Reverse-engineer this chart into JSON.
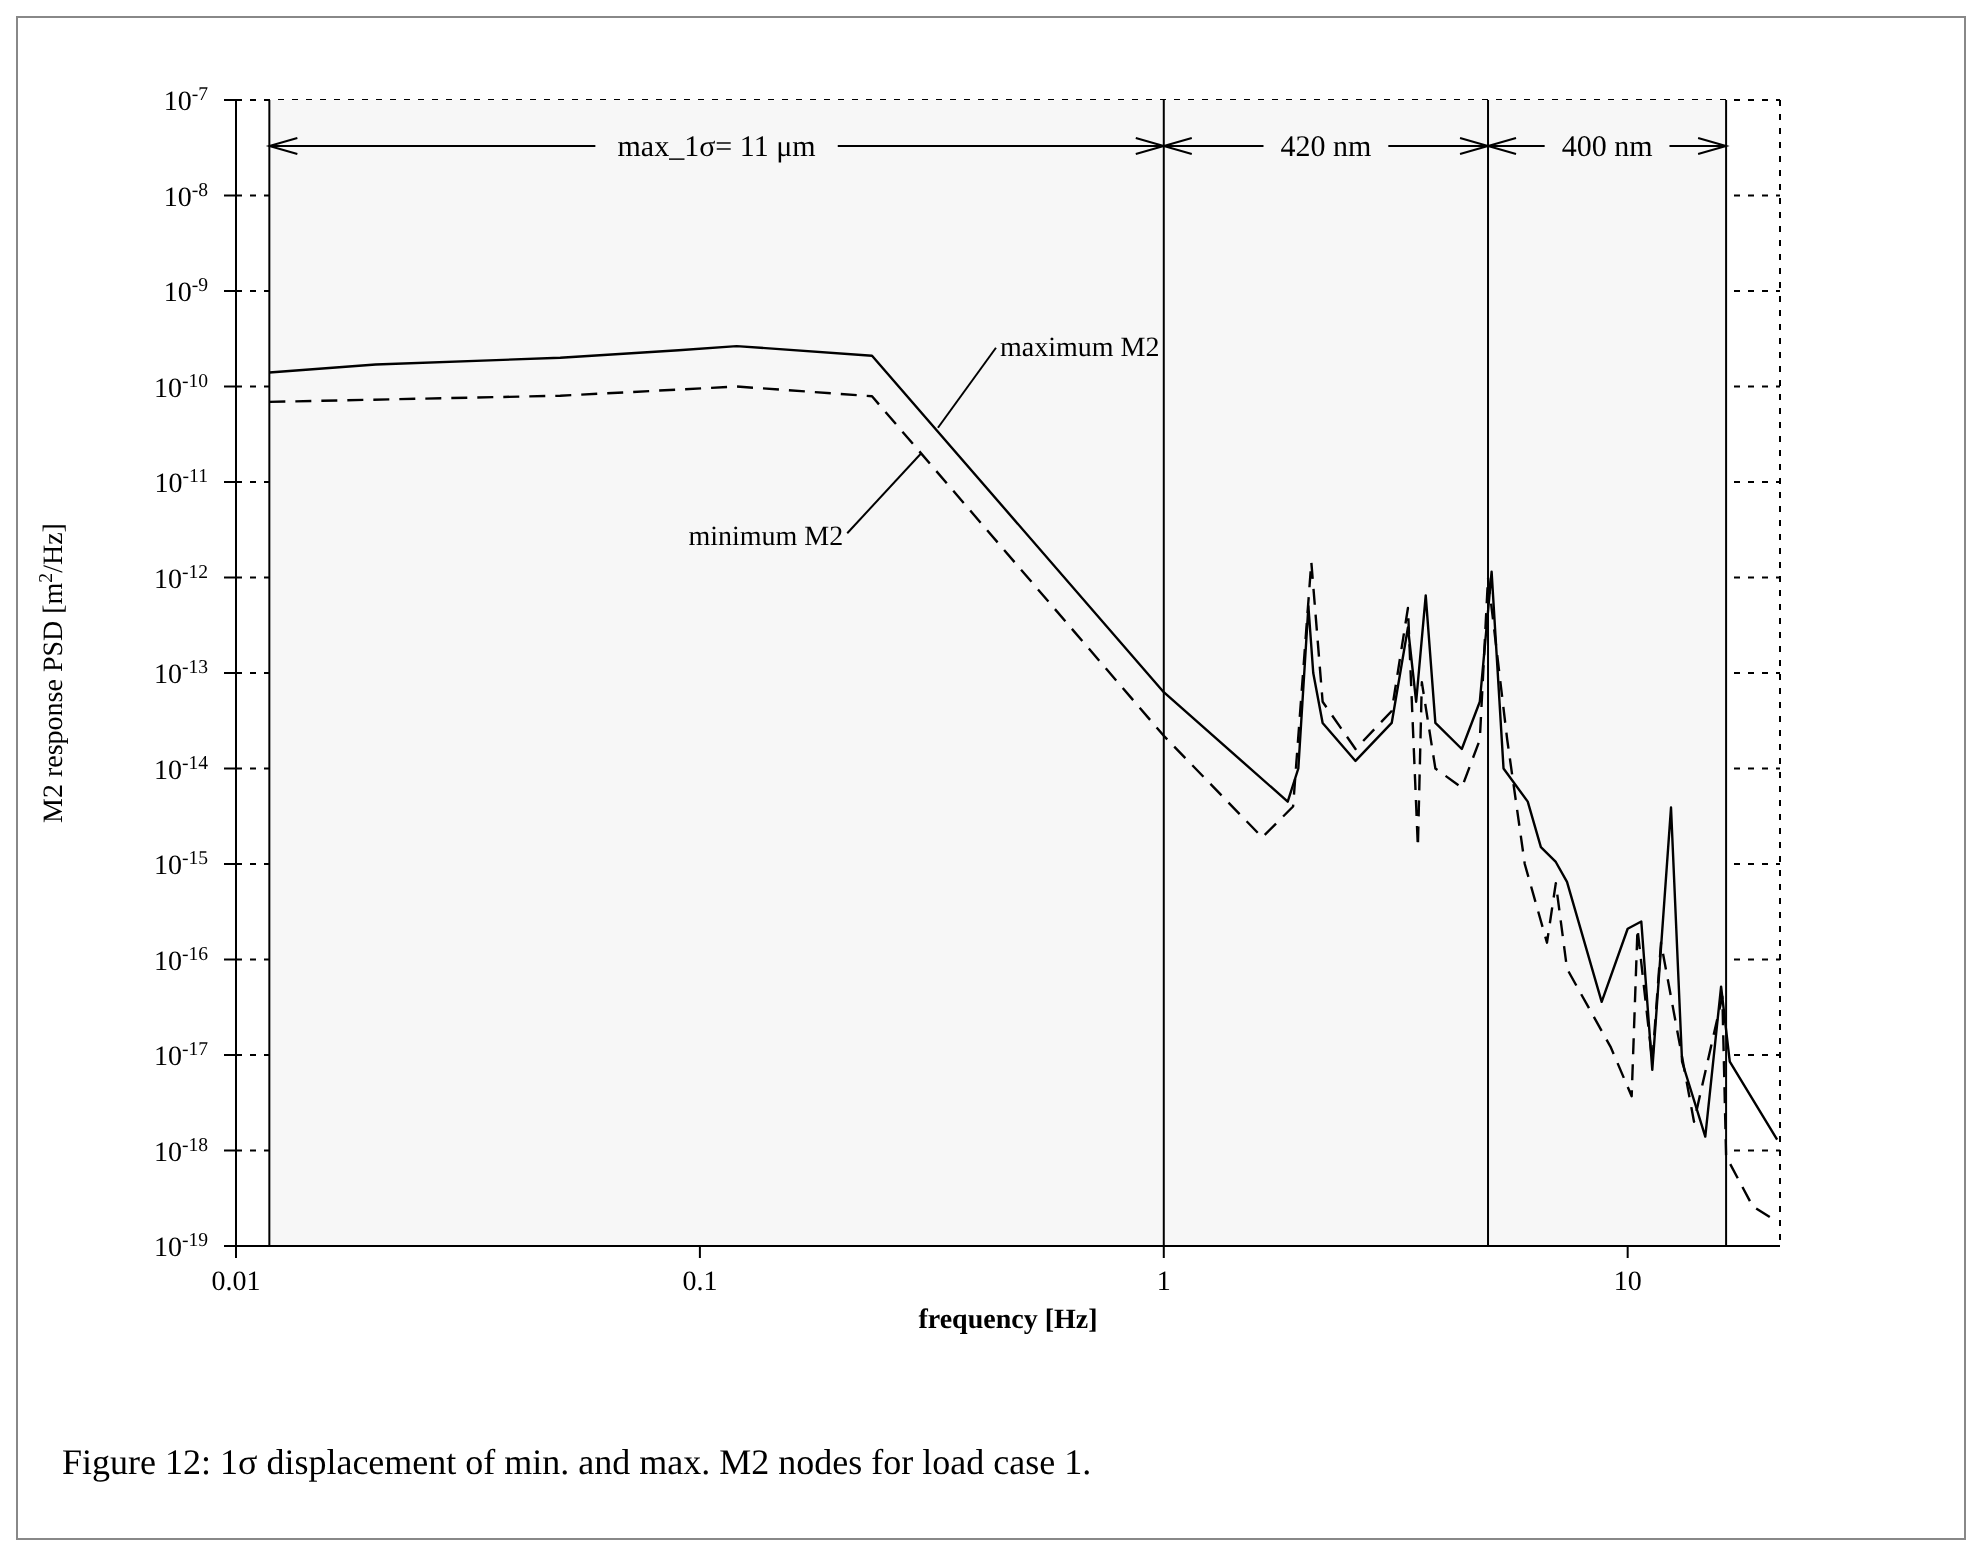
{
  "chart_data": {
    "type": "line",
    "xlabel": "frequency [Hz]",
    "ylabel": "M2 response PSD [m$^{2}$/Hz]",
    "log": "xy",
    "grid": true,
    "xlim": [
      0.01,
      21.3
    ],
    "xticks": [
      0.01,
      0.1,
      1,
      10
    ],
    "ylim": [
      1e-19,
      1e-07
    ],
    "yticks": [
      {
        "value": 1e-07,
        "label": "10$^{-7}$"
      },
      {
        "value": 1e-08,
        "label": "10$^{-8}$"
      },
      {
        "value": 1e-09,
        "label": "10$^{-9}$"
      },
      {
        "value": 1e-10,
        "label": "10$^{-10}$"
      },
      {
        "value": 1e-11,
        "label": "10$^{-11}$"
      },
      {
        "value": 1e-12,
        "label": "10$^{-12}$"
      },
      {
        "value": 1e-13,
        "label": "10$^{-13}$"
      },
      {
        "value": 1e-14,
        "label": "10$^{-14}$"
      },
      {
        "value": 1e-15,
        "label": "10$^{-15}$"
      },
      {
        "value": 1e-16,
        "label": "10$^{-16}$"
      },
      {
        "value": 1e-17,
        "label": "10$^{-17}$"
      },
      {
        "value": 1e-18,
        "label": "10$^{-18}$"
      },
      {
        "value": 1e-19,
        "label": "10$^{-19}$"
      }
    ],
    "series": [
      {
        "color": "#000000",
        "line_style": "solid",
        "x": [
          0.0118,
          0.02,
          0.05,
          0.09,
          0.12,
          0.235,
          1,
          1.85,
          1.95,
          2.05,
          2.1,
          2.2,
          2.59,
          3.1,
          3.36,
          3.5,
          3.67,
          3.85,
          4.39,
          4.8,
          5.09,
          5.4,
          6.09,
          6.5,
          7.0,
          7.4,
          8.79,
          10,
          10.7,
          11.3,
          12.4,
          13.1,
          14.7,
          15.9,
          16.6,
          21
        ],
        "values": [
          1.4e-10,
          1.7e-10,
          2e-10,
          2.4e-10,
          2.65e-10,
          2.1e-10,
          6.3e-14,
          4.5e-15,
          1e-14,
          5e-13,
          1e-13,
          3e-14,
          1.2e-14,
          3e-14,
          3e-13,
          5e-14,
          6.5e-13,
          3e-14,
          1.6e-14,
          5e-14,
          1.15e-12,
          1e-14,
          4.5e-15,
          1.5e-15,
          1.05e-15,
          6.5e-16,
          3.6e-17,
          2.1e-16,
          2.5e-16,
          7e-18,
          3.9e-15,
          8.5e-18,
          1.4e-18,
          5.2e-17,
          8.5e-18,
          1.3e-18
        ]
      },
      {
        "color": "#000000",
        "line_style": "dashed",
        "x": [
          0.0118,
          0.05,
          0.12,
          0.235,
          1,
          1.63,
          1.9,
          2.08,
          2.2,
          2.59,
          3.1,
          3.36,
          3.53,
          3.6,
          3.85,
          4.39,
          4.8,
          5.0,
          5.5,
          6.0,
          6.7,
          7.0,
          7.4,
          9.2,
          10.2,
          10.5,
          11.3,
          11.8,
          13.9,
          16.0,
          16.3,
          18.6,
          21
        ],
        "values": [
          6.9e-11,
          8e-11,
          1e-10,
          7.9e-11,
          2.2e-14,
          1.9e-15,
          4e-15,
          1.45e-12,
          5e-14,
          1.6e-14,
          4e-14,
          4.8e-13,
          1.5e-15,
          8e-14,
          1e-14,
          6.3e-15,
          2e-14,
          1e-12,
          2e-14,
          1e-15,
          1.5e-16,
          6.3e-16,
          8e-17,
          1.2e-17,
          3.7e-18,
          2.1e-16,
          8.5e-18,
          1.5e-16,
          2e-18,
          4.1e-17,
          8.7e-19,
          2.6e-19,
          1.8e-19
        ]
      }
    ],
    "ref_lines": [
      {
        "axis": "x",
        "value": 0.0118,
        "color": "#000000"
      },
      {
        "axis": "x",
        "value": 1,
        "color": "#000000"
      },
      {
        "axis": "x",
        "value": 5,
        "color": "#000000"
      },
      {
        "axis": "x",
        "value": 16.3,
        "color": "#000000"
      }
    ],
    "bands": [
      {
        "axis": "x",
        "from": 0.0118,
        "to": 1,
        "label": "max_1σ= 11 μm",
        "color": "#f7f7f7"
      },
      {
        "axis": "x",
        "from": 1,
        "to": 5,
        "label": "420 nm",
        "color": "#f7f7f7"
      },
      {
        "axis": "x",
        "from": 5,
        "to": 16.3,
        "label": "400 nm",
        "color": "#f7f7f7"
      }
    ],
    "annotations": [
      {
        "text": "maximum M2",
        "x": 0.326,
        "y": 3.7e-11
      },
      {
        "text": "minimum M2",
        "x": 0.3,
        "y": 2e-11
      },
      "Figure 12: 1σ displacement of min. and max. M2 nodes for load case 1."
    ]
  }
}
